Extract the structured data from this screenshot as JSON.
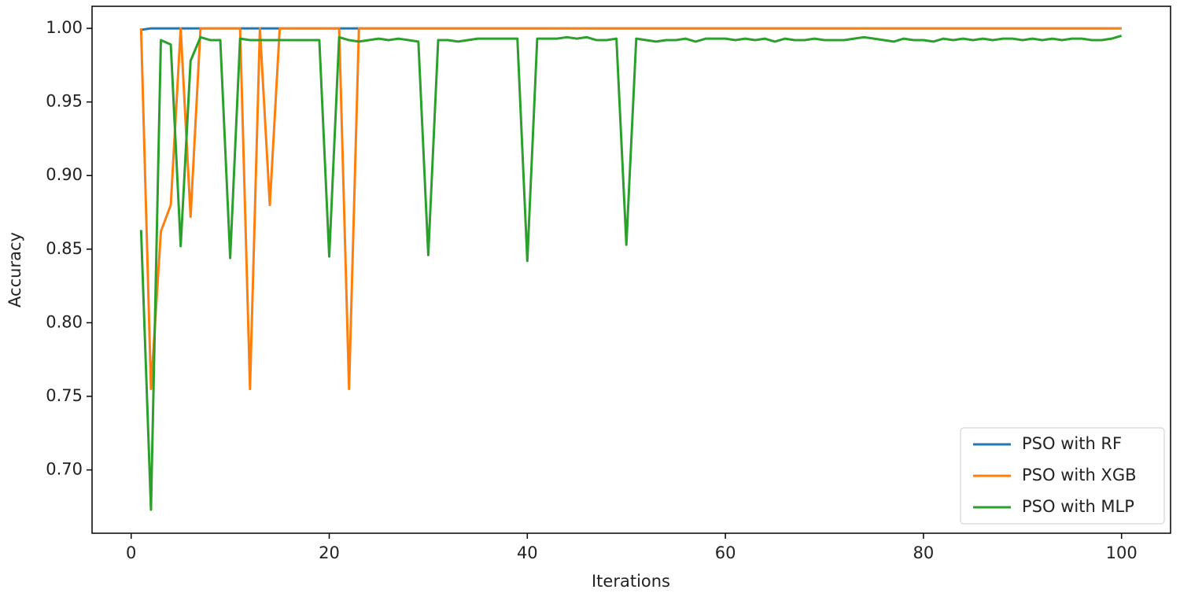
{
  "chart_data": {
    "type": "line",
    "xlabel": "Iterations",
    "ylabel": "Accuracy",
    "x": [
      1,
      2,
      3,
      4,
      5,
      6,
      7,
      8,
      9,
      10,
      11,
      12,
      13,
      14,
      15,
      16,
      17,
      18,
      19,
      20,
      21,
      22,
      23,
      24,
      25,
      26,
      27,
      28,
      29,
      30,
      31,
      32,
      33,
      34,
      35,
      36,
      37,
      38,
      39,
      40,
      41,
      42,
      43,
      44,
      45,
      46,
      47,
      48,
      49,
      50,
      51,
      52,
      53,
      54,
      55,
      56,
      57,
      58,
      59,
      60,
      61,
      62,
      63,
      64,
      65,
      66,
      67,
      68,
      69,
      70,
      71,
      72,
      73,
      74,
      75,
      76,
      77,
      78,
      79,
      80,
      81,
      82,
      83,
      84,
      85,
      86,
      87,
      88,
      89,
      90,
      91,
      92,
      93,
      94,
      95,
      96,
      97,
      98,
      99,
      100
    ],
    "series": [
      {
        "name": "PSO with RF",
        "color": "#1f77b4",
        "values": [
          0.999,
          1.0,
          1.0,
          1.0,
          1.0,
          1.0,
          1.0,
          1.0,
          1.0,
          1.0,
          1.0,
          1.0,
          1.0,
          1.0,
          1.0,
          1.0,
          1.0,
          1.0,
          1.0,
          1.0,
          1.0,
          1.0,
          1.0,
          1.0,
          1.0,
          1.0,
          1.0,
          1.0,
          1.0,
          1.0,
          1.0,
          1.0,
          1.0,
          1.0,
          1.0,
          1.0,
          1.0,
          1.0,
          1.0,
          1.0,
          1.0,
          1.0,
          1.0,
          1.0,
          1.0,
          1.0,
          1.0,
          1.0,
          1.0,
          1.0,
          1.0,
          1.0,
          1.0,
          1.0,
          1.0,
          1.0,
          1.0,
          1.0,
          1.0,
          1.0,
          1.0,
          1.0,
          1.0,
          1.0,
          1.0,
          1.0,
          1.0,
          1.0,
          1.0,
          1.0,
          1.0,
          1.0,
          1.0,
          1.0,
          1.0,
          1.0,
          1.0,
          1.0,
          1.0,
          1.0,
          1.0,
          1.0,
          1.0,
          1.0,
          1.0,
          1.0,
          1.0,
          1.0,
          1.0,
          1.0,
          1.0,
          1.0,
          1.0,
          1.0,
          1.0,
          1.0,
          1.0,
          1.0,
          1.0,
          1.0
        ]
      },
      {
        "name": "PSO with XGB",
        "color": "#ff7f0e",
        "values": [
          1.0,
          0.755,
          0.862,
          0.88,
          1.0,
          0.872,
          1.0,
          1.0,
          1.0,
          1.0,
          1.0,
          0.755,
          1.0,
          0.88,
          1.0,
          1.0,
          1.0,
          1.0,
          1.0,
          1.0,
          1.0,
          0.755,
          1.0,
          1.0,
          1.0,
          1.0,
          1.0,
          1.0,
          1.0,
          1.0,
          1.0,
          1.0,
          1.0,
          1.0,
          1.0,
          1.0,
          1.0,
          1.0,
          1.0,
          1.0,
          1.0,
          1.0,
          1.0,
          1.0,
          1.0,
          1.0,
          1.0,
          1.0,
          1.0,
          1.0,
          1.0,
          1.0,
          1.0,
          1.0,
          1.0,
          1.0,
          1.0,
          1.0,
          1.0,
          1.0,
          1.0,
          1.0,
          1.0,
          1.0,
          1.0,
          1.0,
          1.0,
          1.0,
          1.0,
          1.0,
          1.0,
          1.0,
          1.0,
          1.0,
          1.0,
          1.0,
          1.0,
          1.0,
          1.0,
          1.0,
          1.0,
          1.0,
          1.0,
          1.0,
          1.0,
          1.0,
          1.0,
          1.0,
          1.0,
          1.0,
          1.0,
          1.0,
          1.0,
          1.0,
          1.0,
          1.0,
          1.0,
          1.0,
          1.0,
          1.0
        ]
      },
      {
        "name": "PSO with MLP",
        "color": "#2ca02c",
        "values": [
          0.863,
          0.673,
          0.992,
          0.989,
          0.852,
          0.978,
          0.994,
          0.992,
          0.992,
          0.844,
          0.993,
          0.992,
          0.992,
          0.992,
          0.992,
          0.992,
          0.992,
          0.992,
          0.992,
          0.845,
          0.994,
          0.992,
          0.991,
          0.992,
          0.993,
          0.992,
          0.993,
          0.992,
          0.991,
          0.846,
          0.992,
          0.992,
          0.991,
          0.992,
          0.993,
          0.993,
          0.993,
          0.993,
          0.993,
          0.842,
          0.993,
          0.993,
          0.993,
          0.994,
          0.993,
          0.994,
          0.992,
          0.992,
          0.993,
          0.853,
          0.993,
          0.992,
          0.991,
          0.992,
          0.992,
          0.993,
          0.991,
          0.993,
          0.993,
          0.993,
          0.992,
          0.993,
          0.992,
          0.993,
          0.991,
          0.993,
          0.992,
          0.992,
          0.993,
          0.992,
          0.992,
          0.992,
          0.993,
          0.994,
          0.993,
          0.992,
          0.991,
          0.993,
          0.992,
          0.992,
          0.991,
          0.993,
          0.992,
          0.993,
          0.992,
          0.993,
          0.992,
          0.993,
          0.993,
          0.992,
          0.993,
          0.992,
          0.993,
          0.992,
          0.993,
          0.993,
          0.992,
          0.992,
          0.993,
          0.995
        ]
      }
    ],
    "xlim": [
      -3.95,
      104.95
    ],
    "ylim": [
      0.657,
      1.015
    ],
    "xticks": [
      0,
      20,
      40,
      60,
      80,
      100
    ],
    "yticks": [
      {
        "value": 0.7,
        "label": "0.70"
      },
      {
        "value": 0.75,
        "label": "0.75"
      },
      {
        "value": 0.8,
        "label": "0.80"
      },
      {
        "value": 0.85,
        "label": "0.85"
      },
      {
        "value": 0.9,
        "label": "0.90"
      },
      {
        "value": 0.95,
        "label": "0.95"
      },
      {
        "value": 1.0,
        "label": "1.00"
      }
    ],
    "legend": "lower right",
    "grid": false
  }
}
